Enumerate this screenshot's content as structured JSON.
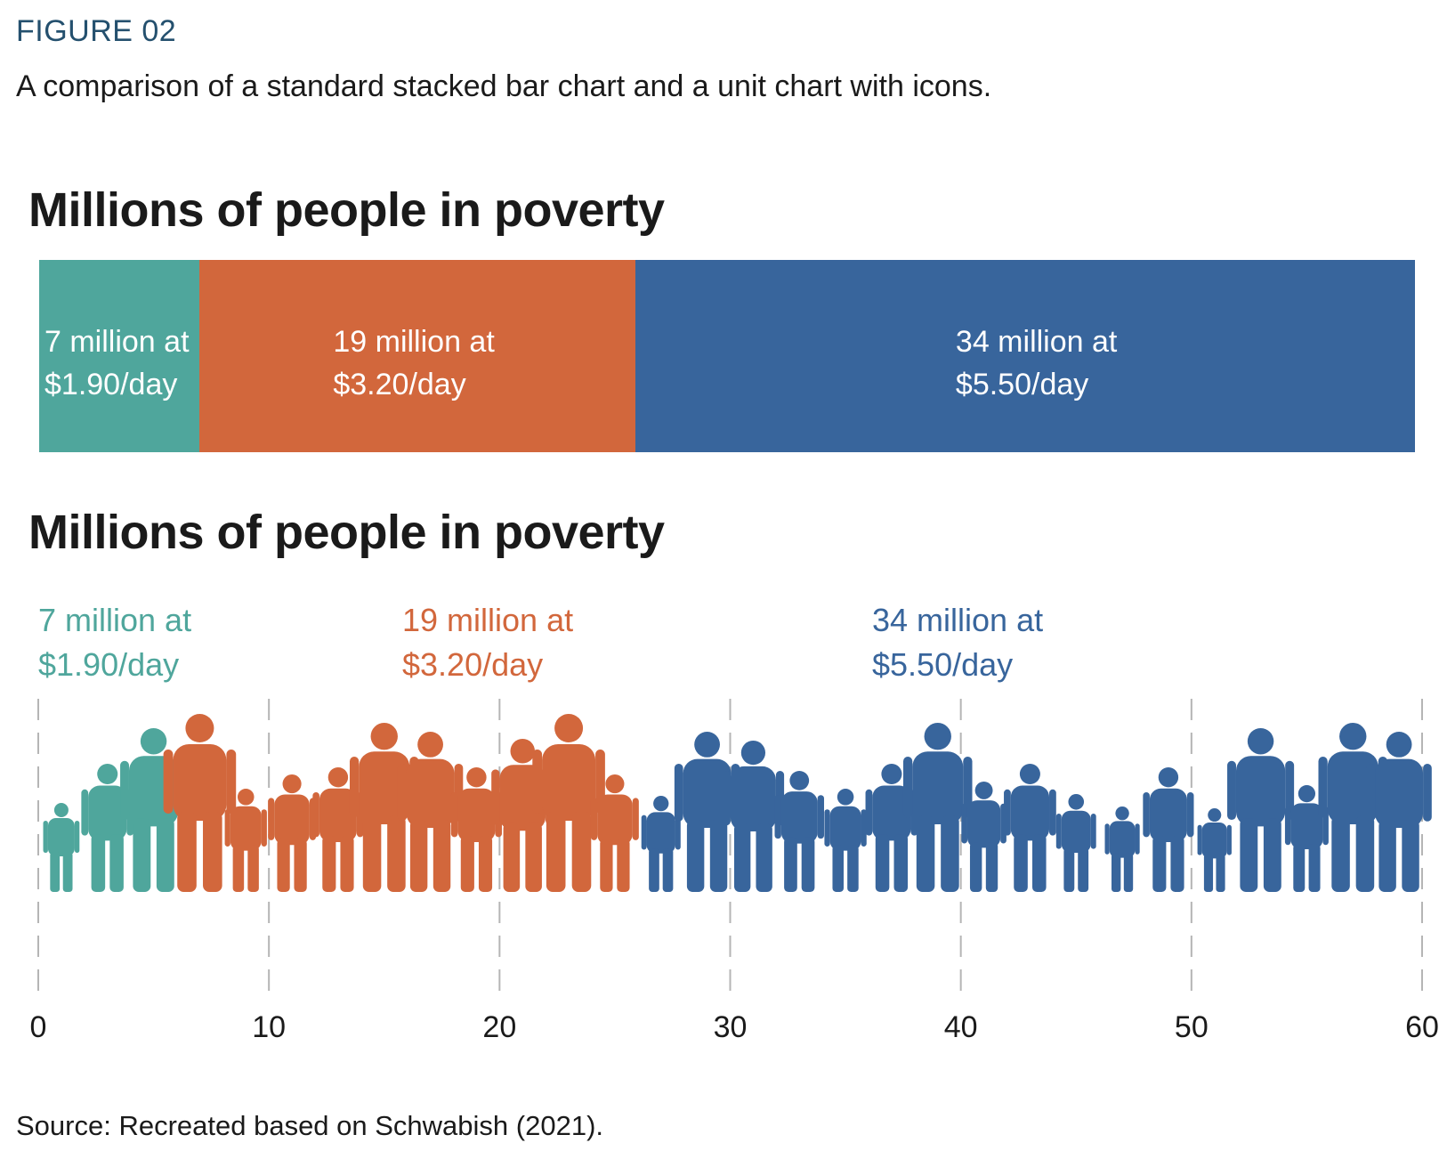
{
  "figure_label": "FIGURE 02",
  "subtitle": "A comparison of a standard stacked bar chart and a unit chart with icons.",
  "source": "Source: Recreated based on Schwabish (2021).",
  "chart_data": [
    {
      "type": "bar",
      "subtype": "stacked-horizontal",
      "title": "Millions of people in poverty",
      "series": [
        {
          "name": "$1.90/day",
          "value": 7,
          "label_line1": "7 million at",
          "label_line2": "$1.90/day",
          "color": "#4fa69c"
        },
        {
          "name": "$3.20/day",
          "value": 19,
          "label_line1": "19 million at",
          "label_line2": "$3.20/day",
          "color": "#d2673c"
        },
        {
          "name": "$5.50/day",
          "value": 34,
          "label_line1": "34 million at",
          "label_line2": "$5.50/day",
          "color": "#38659c"
        }
      ],
      "xlim": [
        0,
        60
      ]
    },
    {
      "type": "unit",
      "icon": "person-silhouette-icon",
      "title": "Millions of people in poverty",
      "series": [
        {
          "name": "$1.90/day",
          "value": 7,
          "label_line1": "7 million at",
          "label_line2": "$1.90/day",
          "color": "#4fa69c"
        },
        {
          "name": "$3.20/day",
          "value": 19,
          "label_line1": "19 million at",
          "label_line2": "$3.20/day",
          "color": "#d2673c"
        },
        {
          "name": "$5.50/day",
          "value": 34,
          "label_line1": "34 million at",
          "label_line2": "$5.50/day",
          "color": "#38659c"
        }
      ],
      "xlim": [
        0,
        60
      ],
      "xticks": [
        "0",
        "10",
        "20",
        "30",
        "40",
        "50",
        "60"
      ],
      "grid": "vertical dashed"
    }
  ]
}
